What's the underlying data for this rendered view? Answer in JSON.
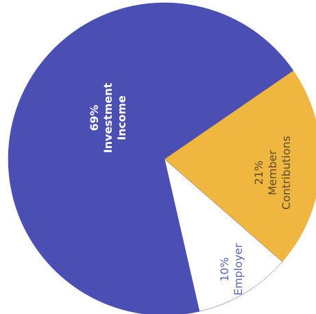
{
  "chart_data": {
    "type": "pie",
    "categories": [
      "Member Contributions",
      "Employer",
      "Investment Income"
    ],
    "values": [
      21,
      10,
      69
    ],
    "value_labels": [
      "21%",
      "10%",
      "69%"
    ],
    "colors": [
      "#efb73f",
      "#ffffff",
      "#4b4fb4"
    ]
  }
}
